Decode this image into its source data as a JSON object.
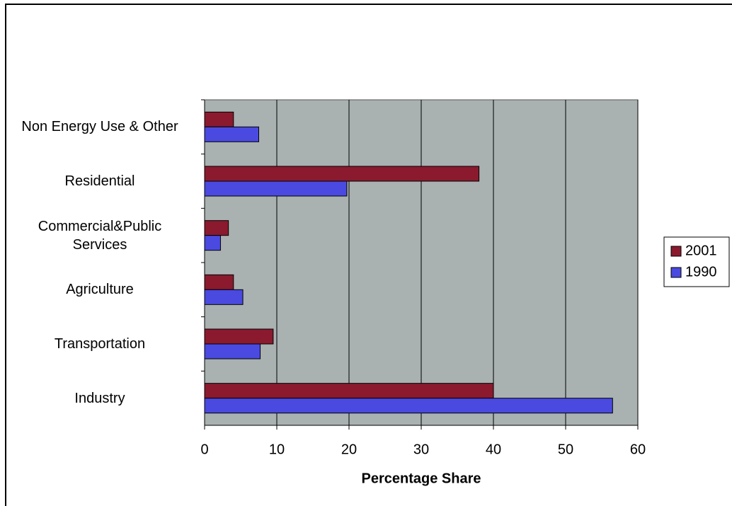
{
  "chart_data": {
    "type": "hbar",
    "categories": [
      "Non Energy Use & Other",
      "Residential",
      "Commercial&Public Services",
      "Agriculture",
      "Transportation",
      "Industry"
    ],
    "series": [
      {
        "name": "2001",
        "color": "#8b1a2e",
        "values": [
          4,
          38,
          3.3,
          4,
          9.5,
          40
        ]
      },
      {
        "name": "1990",
        "color": "#4a4ae0",
        "values": [
          7.5,
          19.7,
          2.2,
          5.3,
          7.7,
          56.5
        ]
      }
    ],
    "x_label": "Percentage Share",
    "xlim": [
      0,
      60
    ],
    "xticks": [
      0,
      10,
      20,
      30,
      40,
      50,
      60
    ],
    "grid": true,
    "legend": "right"
  }
}
